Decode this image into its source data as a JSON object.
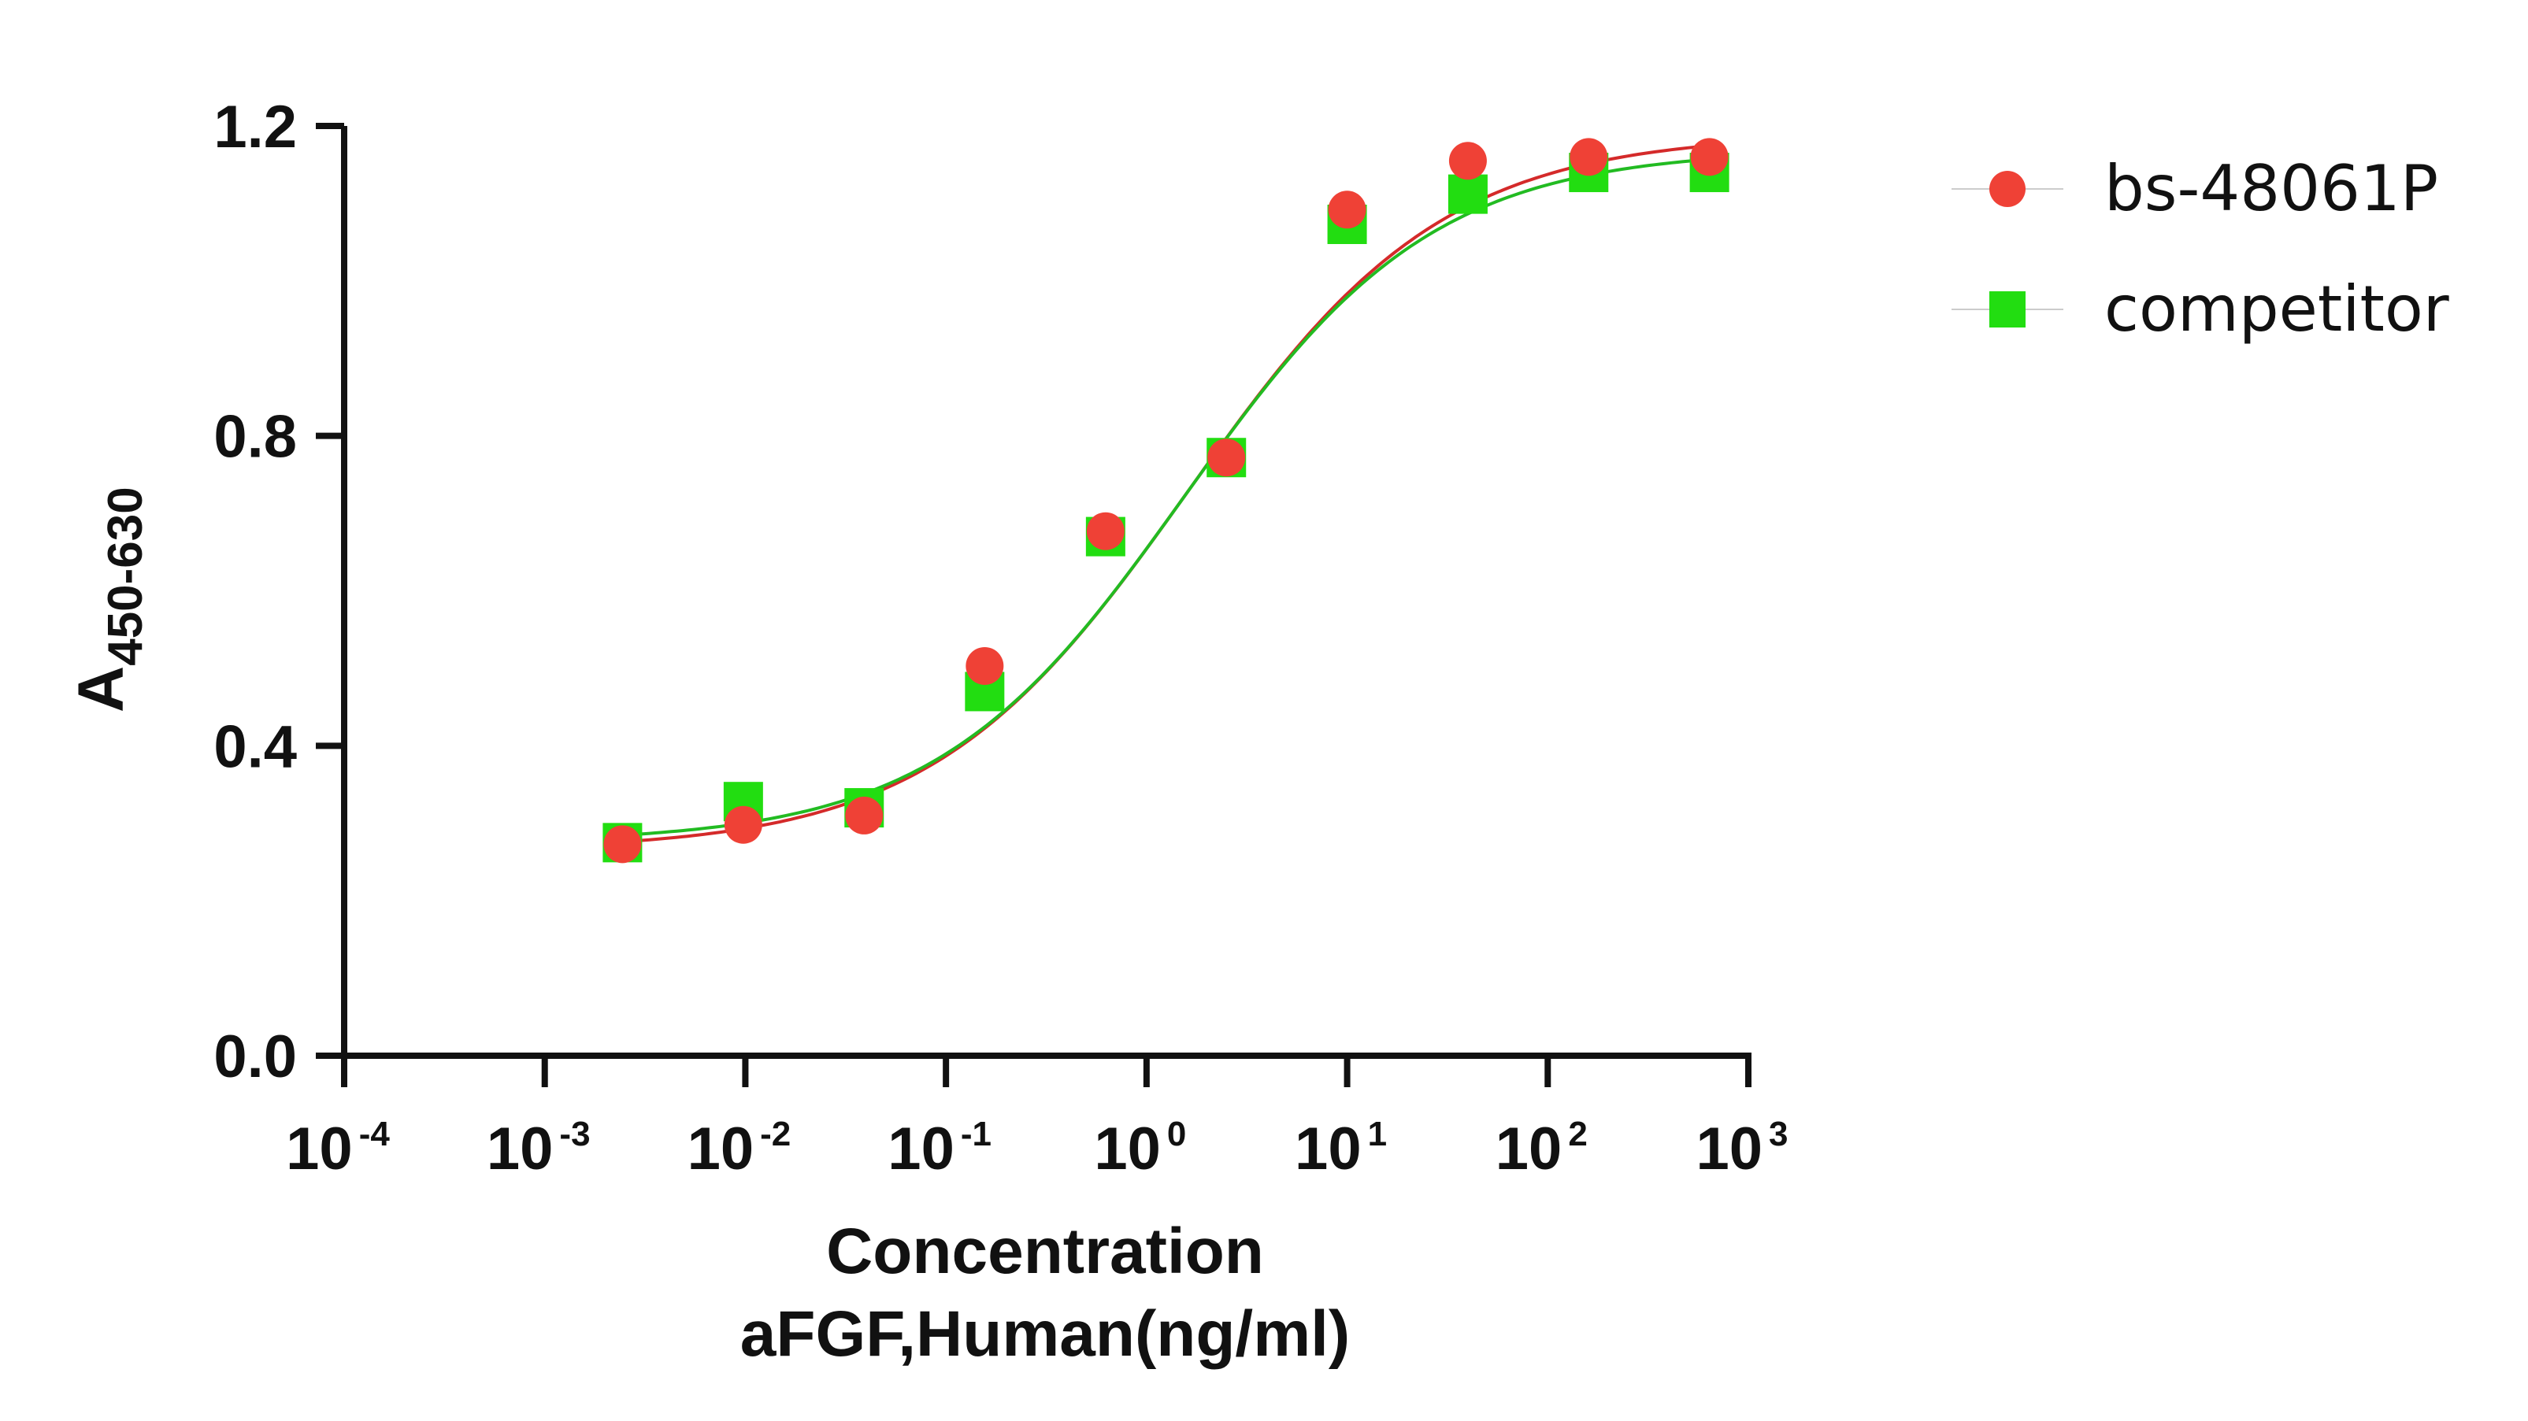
{
  "chart_data": {
    "type": "scatter",
    "x_scale": "log",
    "xlim": [
      0.0001,
      1000
    ],
    "ylim": [
      0,
      1.2
    ],
    "x_ticks": [
      {
        "base": "10",
        "exp": "-4",
        "value": 0.0001
      },
      {
        "base": "10",
        "exp": "-3",
        "value": 0.001
      },
      {
        "base": "10",
        "exp": "-2",
        "value": 0.01
      },
      {
        "base": "10",
        "exp": "-1",
        "value": 0.1
      },
      {
        "base": "10",
        "exp": "0",
        "value": 1
      },
      {
        "base": "10",
        "exp": "1",
        "value": 10
      },
      {
        "base": "10",
        "exp": "2",
        "value": 100
      },
      {
        "base": "10",
        "exp": "3",
        "value": 1000
      }
    ],
    "y_ticks": [
      {
        "label": "0.0",
        "value": 0.0
      },
      {
        "label": "0.4",
        "value": 0.4
      },
      {
        "label": "0.8",
        "value": 0.8
      },
      {
        "label": "1.2",
        "value": 1.2
      }
    ],
    "xlabel": "Concentration",
    "xlabel_line2": "aFGF,Human(ng/ml)",
    "ylabel": "A",
    "ylabel_sub": "450-630",
    "grid": false,
    "legend_position": "top-right",
    "series": [
      {
        "name": "bs-48061P",
        "marker": "circle",
        "color": "#ef4136",
        "curve_color": "#d42a2a",
        "x": [
          0.00244,
          0.00977,
          0.0391,
          0.156,
          0.625,
          2.5,
          10,
          40,
          160,
          640
        ],
        "y": [
          0.273,
          0.298,
          0.31,
          0.503,
          0.677,
          0.772,
          1.092,
          1.155,
          1.16,
          1.16
        ],
        "fit": {
          "bottom": 0.265,
          "top": 1.19,
          "ec50": 1.6,
          "hill": 0.68
        }
      },
      {
        "name": "competitor",
        "marker": "square",
        "color": "#22dd11",
        "curve_color": "#22bb22",
        "x": [
          0.00244,
          0.00977,
          0.0391,
          0.156,
          0.625,
          2.5,
          10,
          40,
          160,
          640
        ],
        "y": [
          0.275,
          0.328,
          0.32,
          0.47,
          0.67,
          0.772,
          1.073,
          1.112,
          1.14,
          1.14
        ],
        "fit": {
          "bottom": 0.275,
          "top": 1.17,
          "ec50": 1.55,
          "hill": 0.7
        }
      }
    ]
  }
}
